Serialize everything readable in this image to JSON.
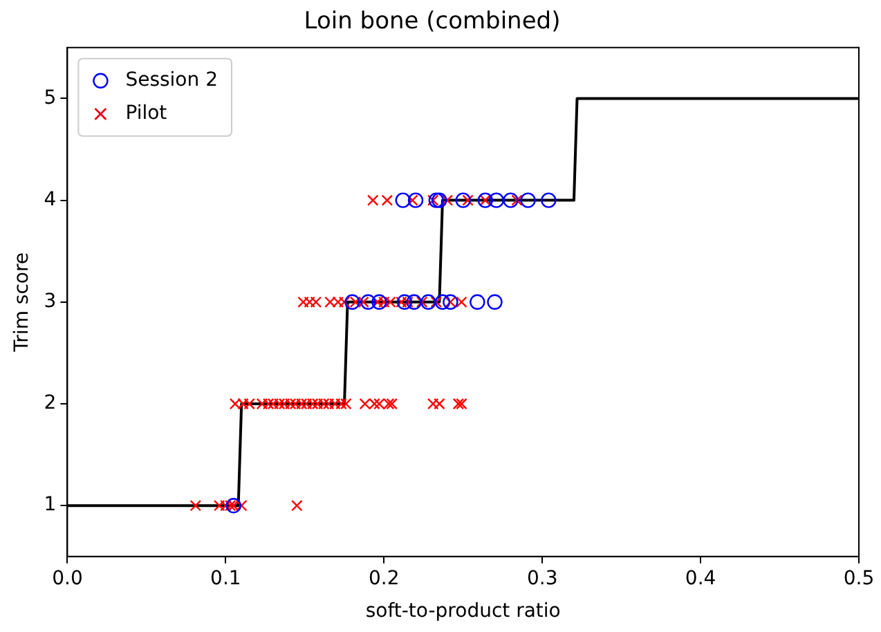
{
  "chart_data": {
    "type": "scatter",
    "title": "Loin bone (combined)",
    "xlabel": "soft-to-product ratio",
    "ylabel": "Trim score",
    "xlim": [
      0,
      0.5
    ],
    "xticks": [
      {
        "value": 0,
        "label": "0.0"
      },
      {
        "value": 0.1,
        "label": "0.1"
      },
      {
        "value": 0.2,
        "label": "0.2"
      },
      {
        "value": 0.3,
        "label": "0.3"
      },
      {
        "value": 0.4,
        "label": "0.4"
      },
      {
        "value": 0.5,
        "label": "0.5"
      }
    ],
    "ylim": [
      0.5,
      5.5
    ],
    "yticks": [
      1,
      2,
      3,
      4,
      5
    ],
    "grid": false,
    "legend": "top left",
    "series": [
      {
        "name": "Session 2",
        "color": "#0000ff",
        "marker": "circle",
        "x": [
          0.105,
          0.18,
          0.19,
          0.197,
          0.213,
          0.219,
          0.228,
          0.237,
          0.242,
          0.259,
          0.27,
          0.212,
          0.22,
          0.233,
          0.235,
          0.25,
          0.264,
          0.271,
          0.28,
          0.291,
          0.304
        ],
        "values": [
          1,
          3,
          3,
          3,
          3,
          3,
          3,
          3,
          3,
          3,
          3,
          4,
          4,
          4,
          4,
          4,
          4,
          4,
          4,
          4,
          4
        ]
      },
      {
        "name": "Pilot",
        "color": "#ff0000",
        "marker": "cross",
        "x": [
          0.081,
          0.096,
          0.1,
          0.103,
          0.105,
          0.11,
          0.145,
          0.106,
          0.111,
          0.115,
          0.123,
          0.127,
          0.13,
          0.134,
          0.137,
          0.141,
          0.144,
          0.148,
          0.151,
          0.155,
          0.158,
          0.162,
          0.165,
          0.169,
          0.173,
          0.176,
          0.188,
          0.194,
          0.197,
          0.203,
          0.205,
          0.231,
          0.235,
          0.247,
          0.249,
          0.149,
          0.153,
          0.157,
          0.166,
          0.171,
          0.175,
          0.182,
          0.187,
          0.196,
          0.2,
          0.204,
          0.211,
          0.215,
          0.224,
          0.233,
          0.242,
          0.249,
          0.193,
          0.202,
          0.218,
          0.231,
          0.24,
          0.253,
          0.264,
          0.284
        ],
        "values": [
          1,
          1,
          1,
          1,
          1,
          1,
          1,
          2,
          2,
          2,
          2,
          2,
          2,
          2,
          2,
          2,
          2,
          2,
          2,
          2,
          2,
          2,
          2,
          2,
          2,
          2,
          2,
          2,
          2,
          2,
          2,
          2,
          2,
          2,
          2,
          3,
          3,
          3,
          3,
          3,
          3,
          3,
          3,
          3,
          3,
          3,
          3,
          3,
          3,
          3,
          3,
          3,
          4,
          4,
          4,
          4,
          4,
          4,
          4,
          4
        ]
      },
      {
        "type": "line",
        "color": "#000000",
        "marker": "none",
        "x": [
          0,
          0.108,
          0.11,
          0.175,
          0.177,
          0.235,
          0.237,
          0.32,
          0.322,
          0.5
        ],
        "values": [
          1,
          1,
          2,
          2,
          3,
          3,
          4,
          4,
          5,
          5
        ]
      }
    ]
  }
}
